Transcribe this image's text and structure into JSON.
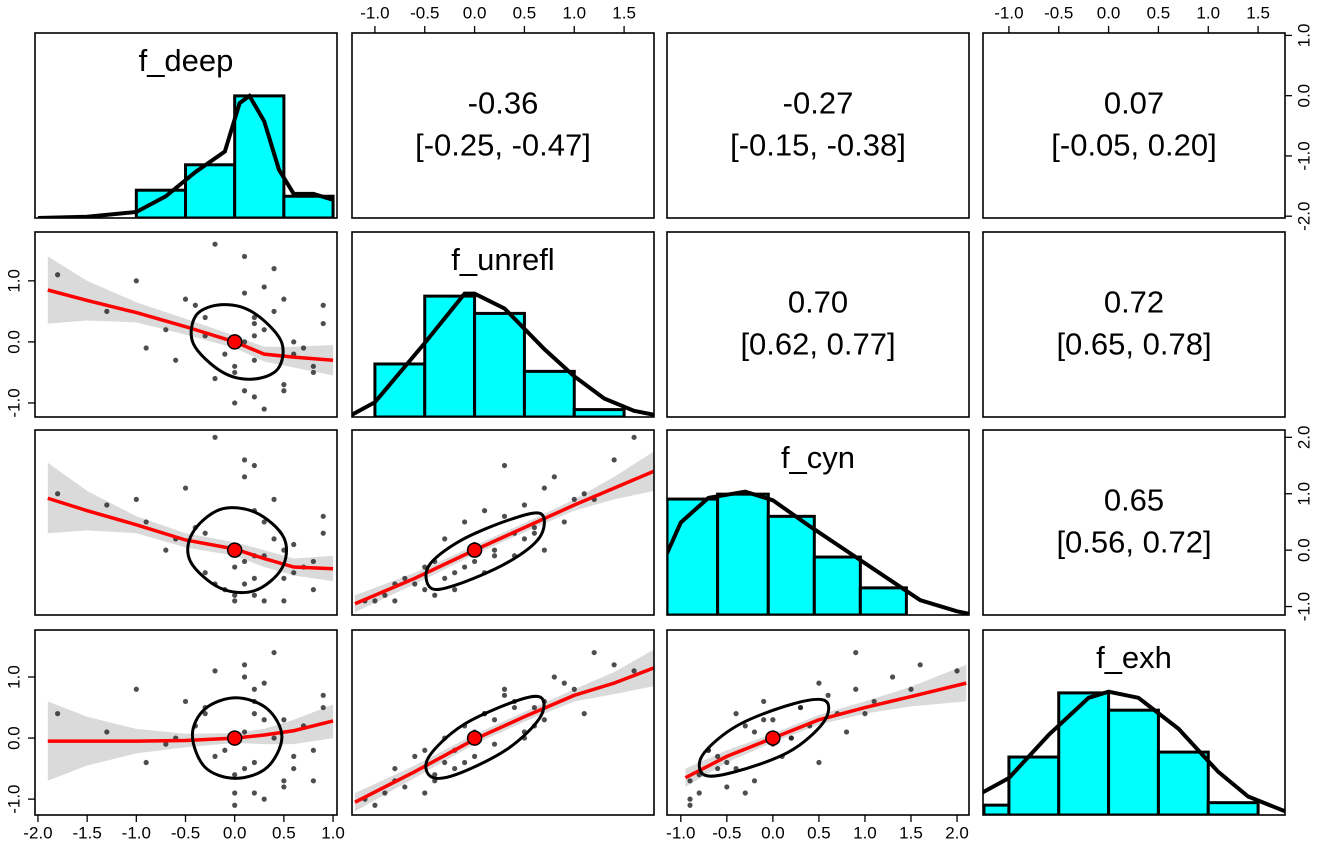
{
  "chart_data": {
    "type": "pairs",
    "hist_color": "#00ffff",
    "fit_color": "#ff0000",
    "band_color": "#d3d3d3",
    "point_color": "#222222",
    "line_color": "#000000",
    "variables": [
      {
        "name": "f_deep",
        "lim": [
          -2.03,
          1.04
        ],
        "xticks": [
          {
            "value": -2,
            "label": "-2.0"
          },
          -1.5,
          {
            "value": -1,
            "label": "-1.0"
          },
          -0.5,
          {
            "value": 0,
            "label": "0.0"
          },
          0.5,
          {
            "value": 1,
            "label": "1.0"
          }
        ],
        "yticks": [
          {
            "value": -2,
            "label": "-2.0"
          },
          {
            "value": -1,
            "label": "-1.0"
          },
          {
            "value": 0,
            "label": "0.0"
          },
          {
            "value": 1,
            "label": "1.0"
          }
        ],
        "values": [
          0.2,
          0.5,
          -0.3,
          0.1,
          0.8,
          -1.0,
          0.3,
          -0.5,
          0.0,
          0.4,
          -1.8,
          0.6,
          0.1,
          -0.2,
          0.9,
          0.2,
          -0.7,
          0.3,
          0.0,
          -0.4,
          0.7,
          0.2,
          -1.3,
          0.5,
          0.1,
          -0.1,
          0.4,
          0.6,
          -0.6,
          0.2,
          0.3,
          -0.2,
          0.9,
          0.0,
          0.2,
          -0.9,
          0.5,
          0.1,
          -0.3,
          0.8
        ],
        "hist": {
          "bins": [
            -1.0,
            -0.5,
            0.0,
            0.5,
            1.0
          ],
          "counts": [
            23,
            44,
            101,
            18
          ],
          "ylim": [
            0,
            153
          ]
        },
        "density": {
          "x": [
            -2.0,
            -1.5,
            -1.0,
            -0.7,
            -0.4,
            -0.1,
            0.05,
            0.15,
            0.3,
            0.45,
            0.6,
            0.8,
            1.0
          ],
          "y": [
            0,
            1,
            5,
            18,
            38,
            55,
            95,
            101,
            80,
            40,
            20,
            20,
            15
          ]
        }
      },
      {
        "name": "f_unrefl",
        "lim": [
          -1.23,
          1.8
        ],
        "xticks": [
          {
            "value": -1,
            "label": "-1.0"
          },
          -0.5,
          {
            "value": 0,
            "label": "0.0"
          },
          0.5,
          {
            "value": 1,
            "label": "1.0"
          },
          1.5
        ],
        "yticks": [
          {
            "value": -1,
            "label": "-1.0"
          },
          {
            "value": 0,
            "label": "0.0"
          },
          {
            "value": 1,
            "label": "1.0"
          }
        ],
        "values": [
          -0.3,
          -0.8,
          0.4,
          0.0,
          -0.5,
          1.0,
          0.2,
          0.7,
          -1.0,
          0.5,
          1.1,
          -0.2,
          1.4,
          -0.6,
          0.3,
          -0.9,
          0.2,
          0.9,
          -0.4,
          0.6,
          -0.1,
          0.1,
          0.5,
          -0.7,
          0.8,
          -0.2,
          1.2,
          0.0,
          -0.3,
          0.4,
          -1.1,
          1.6,
          0.6,
          -0.5,
          0.3,
          -0.1,
          0.7,
          -0.8,
          0.1,
          -0.4
        ],
        "hist": {
          "bins": [
            -1.0,
            -0.5,
            0.0,
            0.5,
            1.0,
            1.5
          ],
          "counts": [
            43,
            98,
            84,
            37,
            6
          ],
          "ylim": [
            0,
            150
          ]
        },
        "density": {
          "x": [
            -1.25,
            -1.0,
            -0.5,
            -0.1,
            0.0,
            0.3,
            0.7,
            1.0,
            1.3,
            1.6,
            1.85
          ],
          "y": [
            1,
            12,
            60,
            100,
            100,
            88,
            55,
            33,
            15,
            5,
            1
          ]
        }
      },
      {
        "name": "f_cyn",
        "lim": [
          -1.15,
          2.13
        ],
        "xticks": [
          {
            "value": -1,
            "label": "-1.0"
          },
          -0.5,
          {
            "value": 0,
            "label": "0.0"
          },
          0.5,
          {
            "value": 1,
            "label": "1.0"
          },
          1.5,
          {
            "value": 2,
            "label": "2.0"
          }
        ],
        "yticks": [
          {
            "value": -1,
            "label": "-1.0"
          },
          {
            "value": 0,
            "label": "0.0"
          },
          {
            "value": 1,
            "label": "1.0"
          },
          {
            "value": 2,
            "label": "2.0"
          }
        ],
        "values": [
          -0.5,
          -0.9,
          0.3,
          -0.2,
          -0.7,
          0.9,
          -0.1,
          1.1,
          -0.9,
          0.2,
          1.0,
          -0.4,
          1.6,
          -0.6,
          0.6,
          -0.8,
          0.0,
          0.5,
          -0.8,
          0.4,
          -0.3,
          0.7,
          0.8,
          -0.5,
          1.3,
          -0.7,
          0.9,
          0.1,
          0.2,
          -0.1,
          -0.9,
          2.0,
          0.3,
          -0.3,
          1.5,
          0.5,
          0.0,
          -0.6,
          -0.4,
          -0.2
        ],
        "hist": {
          "bins": [
            -1.15,
            -0.6,
            -0.05,
            0.45,
            0.95,
            1.45
          ],
          "counts": [
            94,
            98,
            80,
            47,
            22
          ],
          "ylim": [
            0,
            150
          ]
        },
        "density": {
          "x": [
            -1.15,
            -1.0,
            -0.7,
            -0.3,
            0.0,
            0.4,
            0.8,
            1.2,
            1.6,
            2.0,
            2.13
          ],
          "y": [
            50,
            75,
            95,
            100,
            93,
            72,
            52,
            32,
            12,
            3,
            1
          ]
        }
      },
      {
        "name": "f_exh",
        "lim": [
          -1.26,
          1.77
        ],
        "xticks": [
          {
            "value": -1,
            "label": "-1.0"
          },
          -0.5,
          {
            "value": 0,
            "label": "0.0"
          },
          0.5,
          {
            "value": 1,
            "label": "1.0"
          },
          1.5
        ],
        "yticks": [
          {
            "value": -1,
            "label": "-1.0"
          },
          {
            "value": 0,
            "label": "0.0"
          },
          {
            "value": 1,
            "label": "1.0"
          }
        ],
        "values": [
          -0.4,
          -0.7,
          0.5,
          0.1,
          -0.2,
          0.8,
          0.3,
          0.6,
          -1.1,
          0.0,
          0.4,
          -0.5,
          1.2,
          -0.3,
          0.7,
          -0.9,
          -0.1,
          0.9,
          -0.6,
          0.2,
          0.2,
          0.4,
          0.1,
          -0.8,
          1.0,
          -0.2,
          1.4,
          -0.3,
          0.0,
          0.6,
          -1.0,
          1.1,
          0.5,
          -0.9,
          0.8,
          -0.4,
          0.3,
          -0.5,
          0.4,
          -0.7
        ],
        "hist": {
          "bins": [
            -1.25,
            -1.0,
            -0.5,
            0.0,
            0.5,
            1.0,
            1.5
          ],
          "counts": [
            8,
            47,
            99,
            85,
            51,
            10
          ],
          "ylim": [
            0,
            150
          ]
        },
        "density": {
          "x": [
            -1.27,
            -1.0,
            -0.6,
            -0.2,
            0.0,
            0.3,
            0.7,
            1.1,
            1.4,
            1.77
          ],
          "y": [
            18,
            30,
            65,
            95,
            100,
            95,
            70,
            35,
            15,
            3
          ]
        }
      }
    ],
    "upper": [
      {
        "r": "-0.36",
        "ci": "[-0.25, -0.47]"
      },
      {
        "r": "-0.27",
        "ci": "[-0.15, -0.38]"
      },
      {
        "r": "0.07",
        "ci": "[-0.05, 0.20]"
      },
      {
        "r": "0.70",
        "ci": "[0.62, 0.77]"
      },
      {
        "r": "0.72",
        "ci": "[0.65, 0.78]"
      },
      {
        "r": "0.65",
        "ci": "[0.56, 0.72]"
      }
    ],
    "lower": [
      {
        "center": [
          0,
          0
        ],
        "fit": {
          "x": [
            -1.9,
            -1.5,
            -1.0,
            -0.5,
            0,
            0.3,
            0.6,
            1.0
          ],
          "y": [
            0.85,
            0.68,
            0.48,
            0.25,
            0.0,
            -0.2,
            -0.25,
            -0.3
          ],
          "lo": [
            0.3,
            0.35,
            0.32,
            0.12,
            -0.1,
            -0.32,
            -0.42,
            -0.55
          ],
          "hi": [
            1.4,
            1.0,
            0.65,
            0.38,
            0.1,
            -0.08,
            -0.08,
            -0.05
          ]
        },
        "ellipse": {
          "x": [
            -0.39,
            -0.13,
            0.18,
            0.47,
            0.44,
            0.18,
            -0.13,
            -0.42
          ],
          "y": [
            0.44,
            0.61,
            0.49,
            0.02,
            -0.44,
            -0.61,
            -0.49,
            -0.03
          ]
        }
      },
      {
        "center": [
          0,
          0
        ],
        "fit": {
          "x": [
            -1.9,
            -1.5,
            -1.0,
            -0.5,
            0,
            0.3,
            0.6,
            1.0
          ],
          "y": [
            0.92,
            0.7,
            0.45,
            0.18,
            0.02,
            -0.15,
            -0.3,
            -0.33
          ],
          "lo": [
            0.3,
            0.35,
            0.3,
            0.05,
            -0.1,
            -0.3,
            -0.45,
            -0.55
          ],
          "hi": [
            1.55,
            1.05,
            0.6,
            0.3,
            0.14,
            0.0,
            -0.15,
            -0.1
          ]
        },
        "ellipse": {
          "x": [
            -0.43,
            -0.15,
            0.21,
            0.5,
            0.48,
            0.2,
            -0.15,
            -0.45
          ],
          "y": [
            0.3,
            0.72,
            0.67,
            0.22,
            -0.32,
            -0.72,
            -0.67,
            -0.2
          ]
        }
      },
      {
        "center": [
          0,
          0
        ],
        "fit": {
          "x": [
            -1.2,
            -0.6,
            0,
            0.5,
            1.0,
            1.4,
            1.8
          ],
          "y": [
            -0.95,
            -0.5,
            0.0,
            0.4,
            0.8,
            1.1,
            1.4
          ],
          "lo": [
            -1.1,
            -0.6,
            -0.08,
            0.32,
            0.7,
            0.9,
            1.05
          ],
          "hi": [
            -0.8,
            -0.4,
            0.08,
            0.48,
            0.9,
            1.3,
            1.75
          ]
        },
        "ellipse": {
          "x": [
            -0.44,
            -0.46,
            -0.14,
            0.37,
            0.67,
            0.65,
            0.32,
            -0.19
          ],
          "y": [
            -0.67,
            -0.28,
            0.17,
            0.55,
            0.64,
            0.22,
            -0.23,
            -0.62
          ]
        }
      },
      {
        "center": [
          0,
          0
        ],
        "fit": {
          "x": [
            -1.9,
            -1.5,
            -1.0,
            -0.5,
            0,
            0.3,
            0.6,
            1.0
          ],
          "y": [
            -0.05,
            -0.05,
            -0.05,
            -0.04,
            0.0,
            0.05,
            0.12,
            0.28
          ],
          "lo": [
            -0.7,
            -0.45,
            -0.25,
            -0.15,
            -0.08,
            -0.1,
            -0.1,
            0.0
          ],
          "hi": [
            0.6,
            0.35,
            0.15,
            0.07,
            0.08,
            0.15,
            0.3,
            0.55
          ]
        },
        "ellipse": {
          "x": [
            -0.43,
            -0.3,
            0.01,
            0.33,
            0.48,
            0.33,
            0.01,
            -0.3
          ],
          "y": [
            0.05,
            0.48,
            0.66,
            0.48,
            0.02,
            -0.48,
            -0.66,
            -0.48
          ]
        }
      },
      {
        "center": [
          0,
          0
        ],
        "fit": {
          "x": [
            -1.2,
            -0.6,
            0,
            0.5,
            1.0,
            1.4,
            1.8
          ],
          "y": [
            -1.05,
            -0.55,
            -0.02,
            0.35,
            0.7,
            0.9,
            1.15
          ],
          "lo": [
            -1.2,
            -0.65,
            -0.1,
            0.27,
            0.6,
            0.72,
            0.85
          ],
          "hi": [
            -0.9,
            -0.45,
            0.06,
            0.43,
            0.8,
            1.08,
            1.45
          ]
        },
        "ellipse": {
          "x": [
            -0.44,
            -0.46,
            -0.12,
            0.42,
            0.67,
            0.65,
            0.32,
            -0.19
          ],
          "y": [
            -0.63,
            -0.31,
            0.21,
            0.61,
            0.66,
            0.32,
            -0.19,
            -0.6
          ]
        }
      },
      {
        "center": [
          0,
          0
        ],
        "fit": {
          "x": [
            -0.95,
            -0.5,
            0,
            0.5,
            1.0,
            1.5,
            2.1
          ],
          "y": [
            -0.65,
            -0.3,
            0.0,
            0.3,
            0.5,
            0.68,
            0.9
          ],
          "lo": [
            -0.8,
            -0.4,
            -0.07,
            0.22,
            0.4,
            0.52,
            0.6
          ],
          "hi": [
            -0.5,
            -0.2,
            0.07,
            0.38,
            0.6,
            0.84,
            1.2
          ]
        },
        "ellipse": {
          "x": [
            -0.75,
            -0.76,
            -0.38,
            0.22,
            0.57,
            0.55,
            0.17,
            -0.43
          ],
          "y": [
            -0.6,
            -0.27,
            0.21,
            0.56,
            0.61,
            0.26,
            -0.23,
            -0.56
          ]
        }
      }
    ]
  }
}
